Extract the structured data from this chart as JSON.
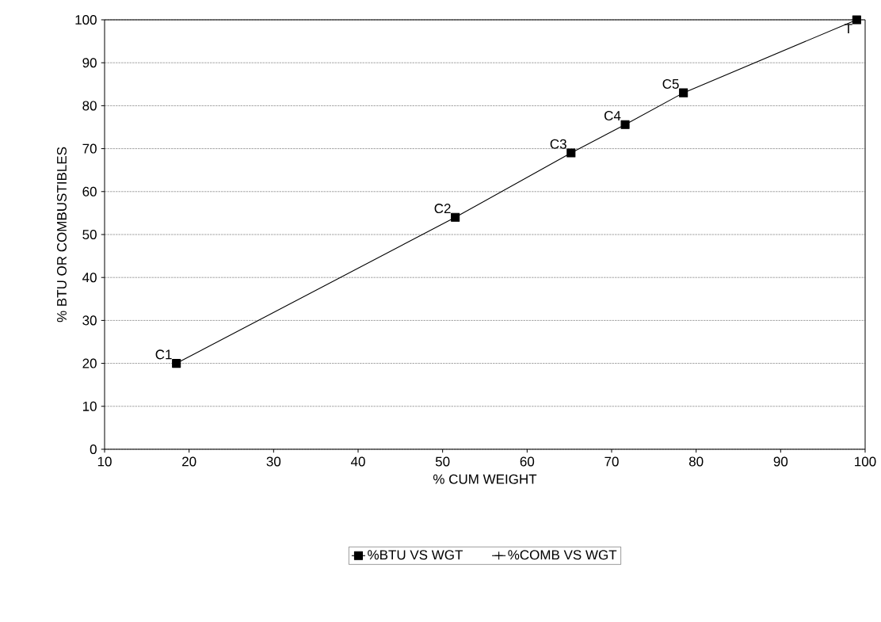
{
  "chart_data": {
    "type": "line",
    "xlabel": "% CUM WEIGHT",
    "ylabel": "% BTU OR COMBUSTIBLES",
    "x": [
      18.5,
      51.5,
      65.2,
      71.6,
      78.5,
      99
    ],
    "series": [
      {
        "name": "%BTU VS WGT",
        "color": "#000000",
        "marker": "square",
        "values": [
          20,
          54,
          69,
          75.6,
          83,
          100
        ]
      },
      {
        "name": "%COMB VS WGT",
        "color": "#000000",
        "marker": "cross",
        "values": [
          null,
          null,
          null,
          null,
          null,
          null
        ]
      }
    ],
    "xlim": [
      10,
      100
    ],
    "ylim": [
      0,
      100
    ],
    "xticks": [
      10,
      20,
      30,
      40,
      50,
      60,
      70,
      80,
      90,
      100
    ],
    "yticks": [
      0,
      10,
      20,
      30,
      40,
      50,
      60,
      70,
      80,
      90,
      100
    ],
    "grid": "y",
    "legend": "bottom",
    "line_style": "solid",
    "annotations": [
      {
        "text": "C1",
        "x": 18.5,
        "y": 20
      },
      {
        "text": "C2",
        "x": 51.5,
        "y": 54
      },
      {
        "text": "C3",
        "x": 65.2,
        "y": 69
      },
      {
        "text": "C4",
        "x": 71.6,
        "y": 75.6
      },
      {
        "text": "C5",
        "x": 78.5,
        "y": 83
      },
      {
        "text": "T",
        "x": 99,
        "y": 100
      }
    ]
  }
}
